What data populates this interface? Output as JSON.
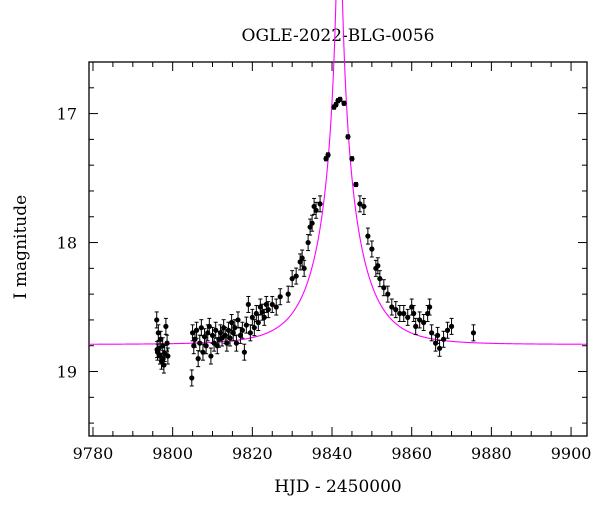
{
  "chart_data": {
    "type": "scatter",
    "title": "OGLE-2022-BLG-0056",
    "xlabel": "HJD - 2450000",
    "ylabel": "I magnitude",
    "xlim": [
      9779,
      9904
    ],
    "ylim": [
      19.5,
      16.6
    ],
    "y_inverted": true,
    "x_ticks": [
      9780,
      9800,
      9820,
      9840,
      9860,
      9880,
      9900
    ],
    "y_ticks": [
      17,
      18,
      19
    ],
    "grid": false,
    "colors": {
      "points": "#000000",
      "model": "#ff00ff",
      "frame": "#000000"
    },
    "model": {
      "t0": 9841.8,
      "u0": 0.0295,
      "tE": 10.2,
      "I_base": 18.79
    },
    "series": [
      {
        "type": "errorbar-scatter",
        "x": [
          9796.0,
          9796.2,
          9796.4,
          9796.6,
          9796.8,
          9797.0,
          9797.2,
          9797.5,
          9797.8,
          9798.0,
          9798.3,
          9798.6,
          9796.1,
          9797.6,
          9798.8,
          9804.8,
          9805.0,
          9805.3,
          9805.6,
          9806.0,
          9806.4,
          9806.8,
          9807.2,
          9807.6,
          9808.0,
          9808.4,
          9808.8,
          9809.2,
          9809.6,
          9810.0,
          9810.4,
          9810.8,
          9811.2,
          9811.6,
          9812.0,
          9812.4,
          9812.8,
          9813.2,
          9813.6,
          9814.0,
          9814.4,
          9814.8,
          9815.2,
          9815.6,
          9816.0,
          9816.4,
          9817.0,
          9817.5,
          9818.0,
          9818.5,
          9819.0,
          9819.5,
          9820.0,
          9820.5,
          9821.0,
          9821.5,
          9822.0,
          9822.5,
          9823.0,
          9823.5,
          9824.0,
          9825.0,
          9826.0,
          9827.0,
          9829.0,
          9830.0,
          9831.0,
          9832.0,
          9832.5,
          9833.0,
          9834.0,
          9834.5,
          9835.0,
          9835.5,
          9836.0,
          9837.0,
          9838.5,
          9839.0,
          9840.5,
          9841.0,
          9841.5,
          9842.0,
          9843.0,
          9844.0,
          9845.0,
          9846.0,
          9847.0,
          9848.0,
          9849.0,
          9850.0,
          9851.0,
          9851.5,
          9852.0,
          9853.0,
          9854.0,
          9855.0,
          9856.0,
          9857.0,
          9858.0,
          9859.0,
          9860.0,
          9860.5,
          9861.0,
          9862.0,
          9863.0,
          9864.0,
          9864.5,
          9865.0,
          9866.0,
          9866.5,
          9867.0,
          9868.0,
          9869.0,
          9870.0,
          9875.5
        ],
        "y": [
          18.6,
          18.85,
          18.7,
          18.82,
          18.88,
          18.75,
          18.92,
          18.8,
          18.95,
          18.86,
          18.65,
          18.78,
          18.83,
          18.9,
          18.88,
          19.05,
          18.7,
          18.8,
          18.75,
          18.68,
          18.9,
          18.78,
          18.66,
          18.85,
          18.73,
          18.8,
          18.7,
          18.65,
          18.88,
          18.72,
          18.78,
          18.68,
          18.8,
          18.75,
          18.7,
          18.74,
          18.66,
          18.72,
          18.78,
          18.68,
          18.74,
          18.62,
          18.7,
          18.66,
          18.78,
          18.6,
          18.72,
          18.68,
          18.85,
          18.64,
          18.48,
          18.7,
          18.58,
          18.66,
          18.55,
          18.62,
          18.5,
          18.54,
          18.58,
          18.48,
          18.52,
          18.48,
          18.5,
          18.42,
          18.4,
          18.28,
          18.26,
          18.15,
          18.12,
          18.2,
          18.0,
          17.88,
          17.85,
          17.72,
          17.75,
          17.7,
          17.35,
          17.32,
          16.95,
          16.93,
          16.9,
          16.89,
          16.92,
          17.18,
          17.35,
          17.55,
          17.7,
          17.72,
          17.95,
          18.05,
          18.2,
          18.18,
          18.28,
          18.35,
          18.4,
          18.5,
          18.52,
          18.55,
          18.55,
          18.58,
          18.5,
          18.55,
          18.65,
          18.6,
          18.62,
          18.55,
          18.5,
          18.7,
          18.78,
          18.72,
          18.82,
          18.75,
          18.68,
          18.65,
          18.7
        ]
      }
    ]
  }
}
